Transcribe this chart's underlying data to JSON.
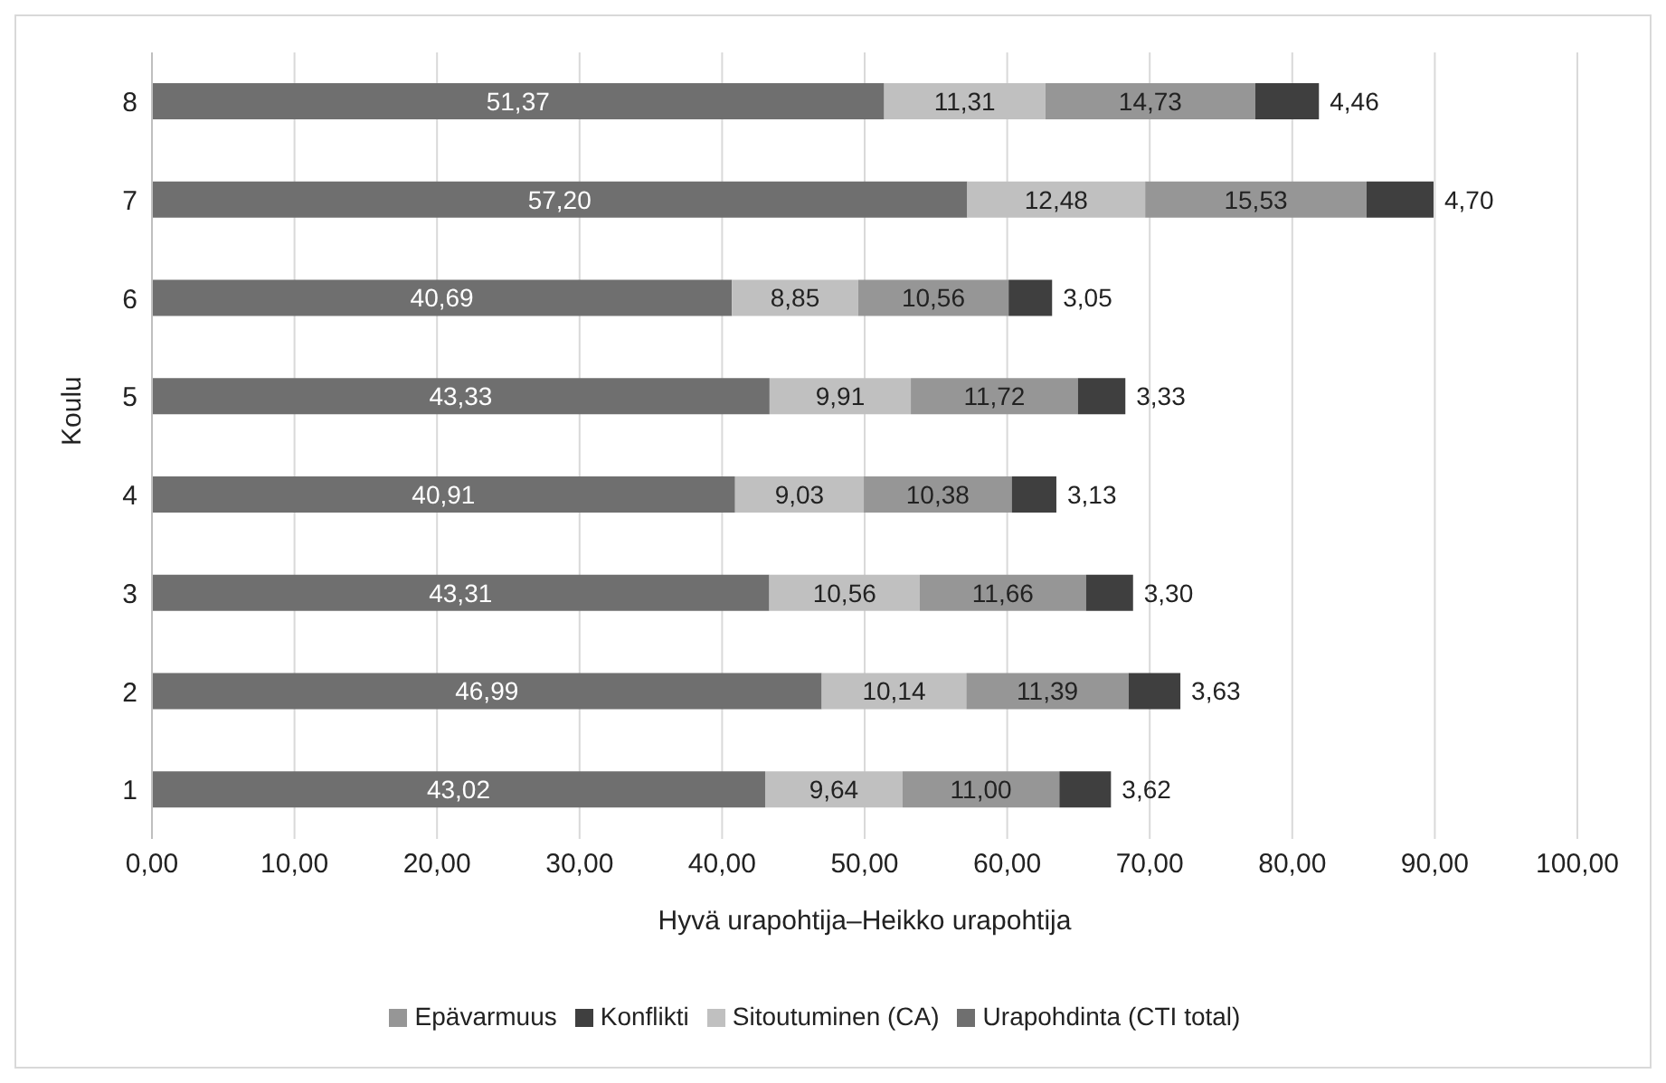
{
  "chart_data": {
    "type": "bar",
    "orientation": "horizontal",
    "stacked": true,
    "xlabel": "Hyvä urapohtija–Heikko urapohtija",
    "ylabel": "Koulu",
    "categories": [
      "8",
      "7",
      "6",
      "5",
      "4",
      "3",
      "2",
      "1"
    ],
    "series": [
      {
        "name": "Urapohdinta (CTI total)",
        "color": "#6f6f6f",
        "values": [
          51.37,
          57.2,
          40.69,
          43.33,
          40.91,
          43.31,
          46.99,
          43.02
        ],
        "value_labels": [
          "51,37",
          "57,20",
          "40,69",
          "43,33",
          "40,91",
          "43,31",
          "46,99",
          "43,02"
        ]
      },
      {
        "name": "Sitoutuminen (CA)",
        "color": "#c0c0c0",
        "values": [
          11.31,
          12.48,
          8.85,
          9.91,
          9.03,
          10.56,
          10.14,
          9.64
        ],
        "value_labels": [
          "11,31",
          "12,48",
          "8,85",
          "9,91",
          "9,03",
          "10,56",
          "10,14",
          "9,64"
        ]
      },
      {
        "name": "Epävarmuus",
        "color": "#969696",
        "values": [
          14.73,
          15.53,
          10.56,
          11.72,
          10.38,
          11.66,
          11.39,
          11.0
        ],
        "value_labels": [
          "14,73",
          "15,53",
          "10,56",
          "11,72",
          "10,38",
          "11,66",
          "11,39",
          "11,00"
        ]
      },
      {
        "name": "Konflikti",
        "color": "#3f3f3f",
        "values": [
          4.46,
          4.7,
          3.05,
          3.33,
          3.13,
          3.3,
          3.63,
          3.62
        ],
        "value_labels": [
          "4,46",
          "4,70",
          "3,05",
          "3,33",
          "3,13",
          "3,30",
          "3,63",
          "3,62"
        ]
      }
    ],
    "xlim": [
      0,
      100
    ],
    "xticks": [
      {
        "value": 0,
        "label": "0,00"
      },
      {
        "value": 10,
        "label": "10,00"
      },
      {
        "value": 20,
        "label": "20,00"
      },
      {
        "value": 30,
        "label": "30,00"
      },
      {
        "value": 40,
        "label": "40,00"
      },
      {
        "value": 50,
        "label": "50,00"
      },
      {
        "value": 60,
        "label": "60,00"
      },
      {
        "value": 70,
        "label": "70,00"
      },
      {
        "value": 80,
        "label": "80,00"
      },
      {
        "value": 90,
        "label": "90,00"
      },
      {
        "value": 100,
        "label": "100,00"
      }
    ],
    "grid": "x",
    "legend": "bottom"
  }
}
